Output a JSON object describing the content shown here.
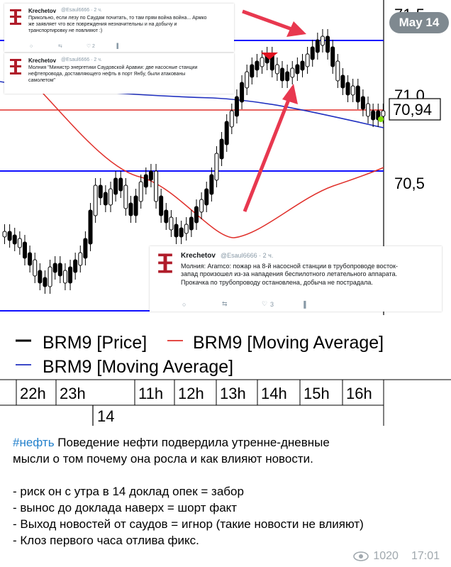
{
  "chart": {
    "price_labels": [
      "71,5",
      "71,0",
      "70,5"
    ],
    "current_price": "70,94",
    "time_labels": [
      "22h",
      "23h",
      "11h",
      "12h",
      "13h",
      "14h",
      "15h",
      "16h"
    ],
    "day_label": "14",
    "legend": [
      "BRM9 [Price]",
      "BRM9 [Moving Average]",
      "BRM9 [Moving Average]"
    ],
    "colors": {
      "price": "#000000",
      "ma_fast": "#e0302b",
      "ma_slow": "#2030c0",
      "level": "#1010ff",
      "arrow": "#e8384f",
      "current": "#7fe000"
    }
  },
  "date_badge": "May 14",
  "tweets": [
    {
      "name": "Krechetov",
      "handle": "@Esaul6666 · 2 ч.",
      "text_lines": [
        "Прикольно, если лезу по Саудам почитать, то там прям война война... Армко",
        "же заявляет что все повреждения незначительны и на добычу и",
        "транспортировку не повлияют :)"
      ],
      "likes": "2"
    },
    {
      "name": "Krechetov",
      "handle": "@Esaul6666 · 2 ч.",
      "text_lines": [
        "Молния \"Министр энергетики Саудовской Аравии: две насосные станции",
        "нефтепровода, доставляющего нефть в порт Янбу, были атакованы",
        "самолетом\""
      ]
    },
    {
      "name": "Krechetov",
      "handle": "@Esaul6666 · 2 ч.",
      "text_lines": [
        "Молния: Aramco: пожар на 8-й насосной станции в трубопроводе восток-",
        "запад произошел из-за нападения беспилотного летательного аппарата.",
        "Прокачка по трубопроводу остановлена, добыча не пострадала."
      ],
      "likes": "3"
    }
  ],
  "message": {
    "hashtag": "#нефть",
    "lines": [
      " Поведение нефти подвердила утренне-дневные",
      "мысли о том почему она росла и как влияют новости.",
      "",
      "- риск он с утра в 14 доклад опек = забор",
      "- вынос до доклада наверх = шорт факт",
      "- Выход новостей от саудов = игнор (такие новости не влияют)",
      "- Клоз первого часа отлива фикс."
    ]
  },
  "meta": {
    "views": "1020",
    "time": "17:01"
  }
}
